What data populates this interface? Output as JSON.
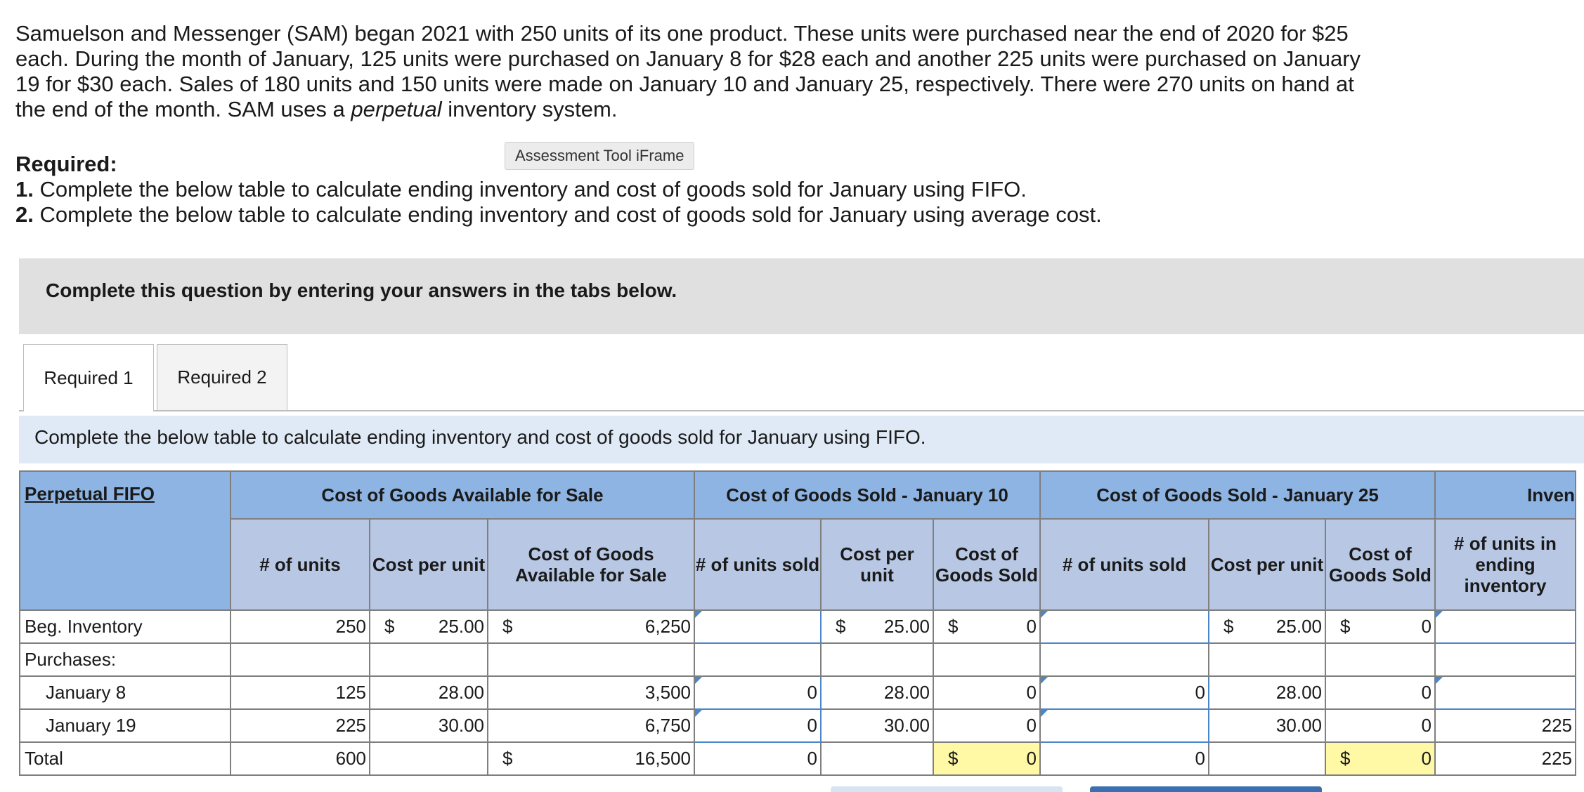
{
  "problem": {
    "text_before": "Samuelson and Messenger (SAM) began 2021 with 250 units of its one product. These units were purchased near the end of 2020 for $25 each. During the month of January, 125 units were purchased on January 8 for $28 each and another 225 units were purchased on January 19 for $30 each. Sales of 180 units and 150 units were made on January 10 and January 25, respectively. There were 270 units on hand at the end of the month. SAM uses a ",
    "emphasis": "perpetual",
    "text_after": " inventory system."
  },
  "iframe_label": "Assessment Tool iFrame",
  "required": {
    "title": "Required:",
    "items": [
      {
        "num": "1.",
        "text": " Complete the below table to calculate ending inventory and cost of goods sold for January using FIFO."
      },
      {
        "num": "2.",
        "text": " Complete the below table to calculate ending inventory and cost of goods sold for January using average cost."
      }
    ]
  },
  "banner": "Complete this question by entering your answers in the tabs below.",
  "tabs": [
    "Required 1",
    "Required 2"
  ],
  "instruction": "Complete the below table to calculate ending inventory and cost of goods sold for January using FIFO.",
  "table": {
    "corner": "Perpetual FIFO",
    "groups": [
      "Cost of Goods Available for Sale",
      "Cost of Goods Sold - January 10",
      "Cost of Goods Sold - January 25",
      "Inven"
    ],
    "columns": [
      "# of units",
      "Cost per unit",
      "Cost of Goods Available for Sale",
      "# of units sold",
      "Cost per unit",
      "Cost of Goods Sold",
      "# of units sold",
      "Cost per unit",
      "Cost of Goods Sold",
      "# of units in ending inventory"
    ],
    "rows": {
      "beg": {
        "label": "Beg. Inventory",
        "units": "250",
        "cpu": "25.00",
        "cogas": "6,250",
        "j10_cpu": "25.00",
        "j10_cogs": "0",
        "j25_cpu": "25.00",
        "j25_cogs": "0"
      },
      "purchases": {
        "label": "Purchases:"
      },
      "jan8": {
        "label": "January 8",
        "units": "125",
        "cpu": "28.00",
        "cogas": "3,500",
        "j10_sold": "0",
        "j10_cpu": "28.00",
        "j10_cogs": "0",
        "j25_sold": "0",
        "j25_cpu": "28.00",
        "j25_cogs": "0"
      },
      "jan19": {
        "label": "January 19",
        "units": "225",
        "cpu": "30.00",
        "cogas": "6,750",
        "j10_sold": "0",
        "j10_cpu": "30.00",
        "j10_cogs": "0",
        "j25_cpu": "30.00",
        "j25_cogs": "0",
        "end": "225"
      },
      "total": {
        "label": "Total",
        "units": "600",
        "cogas": "16,500",
        "j10_sold": "0",
        "j10_cogs": "0",
        "j25_sold": "0",
        "j25_cogs": "0",
        "end": "225"
      }
    },
    "currency": "$"
  },
  "colors": {
    "header": "#8eb4e3",
    "subheader": "#b8c8e4",
    "highlight": "#fff9a6",
    "input_border": "#4a86c8"
  }
}
